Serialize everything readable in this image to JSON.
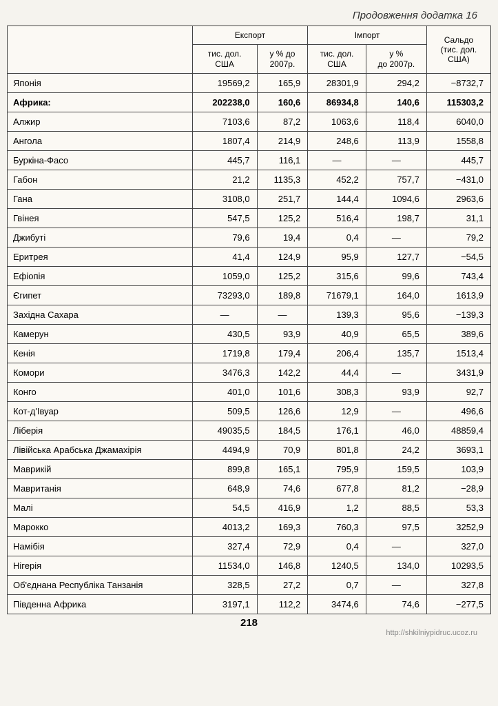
{
  "title": "Продовження додатка 16",
  "headers": {
    "export": "Експорт",
    "import": "Імпорт",
    "saldo": "Сальдо\n(тис. дол.\nСША)",
    "col1": "тис. дол.\nСША",
    "col2": "у % до\n2007р.",
    "col3": "тис. дол.\nСША",
    "col4": "у %\nдо 2007р."
  },
  "rows": [
    {
      "name": "Японія",
      "c1": "19569,2",
      "c2": "165,9",
      "c3": "28301,9",
      "c4": "294,2",
      "c5": "−8732,7",
      "bold": false
    },
    {
      "name": "Африка:",
      "c1": "202238,0",
      "c2": "160,6",
      "c3": "86934,8",
      "c4": "140,6",
      "c5": "115303,2",
      "bold": true
    },
    {
      "name": "Алжир",
      "c1": "7103,6",
      "c2": "87,2",
      "c3": "1063,6",
      "c4": "118,4",
      "c5": "6040,0",
      "bold": false
    },
    {
      "name": "Ангола",
      "c1": "1807,4",
      "c2": "214,9",
      "c3": "248,6",
      "c4": "113,9",
      "c5": "1558,8",
      "bold": false
    },
    {
      "name": "Буркіна-Фасо",
      "c1": "445,7",
      "c2": "116,1",
      "c3": "—",
      "c4": "—",
      "c5": "445,7",
      "bold": false
    },
    {
      "name": "Габон",
      "c1": "21,2",
      "c2": "1135,3",
      "c3": "452,2",
      "c4": "757,7",
      "c5": "−431,0",
      "bold": false
    },
    {
      "name": "Гана",
      "c1": "3108,0",
      "c2": "251,7",
      "c3": "144,4",
      "c4": "1094,6",
      "c5": "2963,6",
      "bold": false
    },
    {
      "name": "Гвінея",
      "c1": "547,5",
      "c2": "125,2",
      "c3": "516,4",
      "c4": "198,7",
      "c5": "31,1",
      "bold": false
    },
    {
      "name": "Джибуті",
      "c1": "79,6",
      "c2": "19,4",
      "c3": "0,4",
      "c4": "—",
      "c5": "79,2",
      "bold": false
    },
    {
      "name": "Еритрея",
      "c1": "41,4",
      "c2": "124,9",
      "c3": "95,9",
      "c4": "127,7",
      "c5": "−54,5",
      "bold": false
    },
    {
      "name": "Ефіопія",
      "c1": "1059,0",
      "c2": "125,2",
      "c3": "315,6",
      "c4": "99,6",
      "c5": "743,4",
      "bold": false
    },
    {
      "name": "Єгипет",
      "c1": "73293,0",
      "c2": "189,8",
      "c3": "71679,1",
      "c4": "164,0",
      "c5": "1613,9",
      "bold": false
    },
    {
      "name": "Західна Сахара",
      "c1": "—",
      "c2": "—",
      "c3": "139,3",
      "c4": "95,6",
      "c5": "−139,3",
      "bold": false
    },
    {
      "name": "Камерун",
      "c1": "430,5",
      "c2": "93,9",
      "c3": "40,9",
      "c4": "65,5",
      "c5": "389,6",
      "bold": false
    },
    {
      "name": "Кенія",
      "c1": "1719,8",
      "c2": "179,4",
      "c3": "206,4",
      "c4": "135,7",
      "c5": "1513,4",
      "bold": false
    },
    {
      "name": "Комори",
      "c1": "3476,3",
      "c2": "142,2",
      "c3": "44,4",
      "c4": "—",
      "c5": "3431,9",
      "bold": false
    },
    {
      "name": "Конго",
      "c1": "401,0",
      "c2": "101,6",
      "c3": "308,3",
      "c4": "93,9",
      "c5": "92,7",
      "bold": false
    },
    {
      "name": "Кот-д'Івуар",
      "c1": "509,5",
      "c2": "126,6",
      "c3": "12,9",
      "c4": "—",
      "c5": "496,6",
      "bold": false
    },
    {
      "name": "Ліберія",
      "c1": "49035,5",
      "c2": "184,5",
      "c3": "176,1",
      "c4": "46,0",
      "c5": "48859,4",
      "bold": false
    },
    {
      "name": "Лівійська Арабська Джамахірія",
      "c1": "4494,9",
      "c2": "70,9",
      "c3": "801,8",
      "c4": "24,2",
      "c5": "3693,1",
      "bold": false
    },
    {
      "name": "Маврикій",
      "c1": "899,8",
      "c2": "165,1",
      "c3": "795,9",
      "c4": "159,5",
      "c5": "103,9",
      "bold": false
    },
    {
      "name": "Мавританія",
      "c1": "648,9",
      "c2": "74,6",
      "c3": "677,8",
      "c4": "81,2",
      "c5": "−28,9",
      "bold": false
    },
    {
      "name": "Малі",
      "c1": "54,5",
      "c2": "416,9",
      "c3": "1,2",
      "c4": "88,5",
      "c5": "53,3",
      "bold": false
    },
    {
      "name": "Марокко",
      "c1": "4013,2",
      "c2": "169,3",
      "c3": "760,3",
      "c4": "97,5",
      "c5": "3252,9",
      "bold": false
    },
    {
      "name": "Намібія",
      "c1": "327,4",
      "c2": "72,9",
      "c3": "0,4",
      "c4": "—",
      "c5": "327,0",
      "bold": false
    },
    {
      "name": "Нігерія",
      "c1": "11534,0",
      "c2": "146,8",
      "c3": "1240,5",
      "c4": "134,0",
      "c5": "10293,5",
      "bold": false
    },
    {
      "name": "Об'єднана Республіка Танзанія",
      "c1": "328,5",
      "c2": "27,2",
      "c3": "0,7",
      "c4": "—",
      "c5": "327,8",
      "bold": false
    },
    {
      "name": "Південна Африка",
      "c1": "3197,1",
      "c2": "112,2",
      "c3": "3474,6",
      "c4": "74,6",
      "c5": "−277,5",
      "bold": false
    }
  ],
  "page_number": "218",
  "footer_url": "http://shkilniypidruc.ucoz.ru"
}
